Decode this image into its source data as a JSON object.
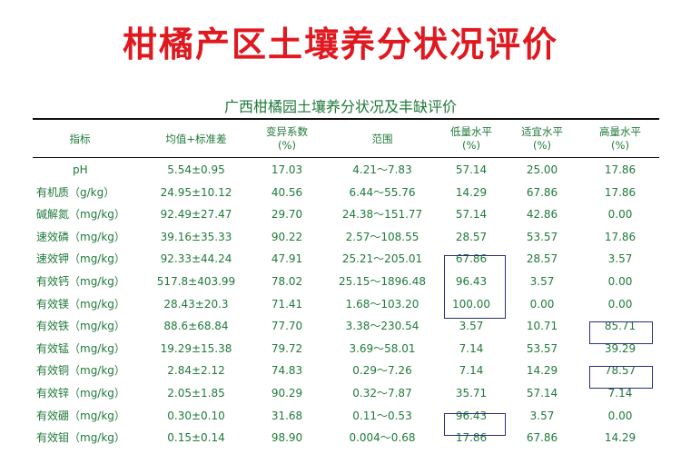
{
  "page": {
    "title": "柑橘产区土壤养分状况评价",
    "table_title": "广西柑橘园土壤养分状况及丰缺评价"
  },
  "table": {
    "headers": [
      {
        "lines": [
          "指标"
        ]
      },
      {
        "lines": [
          "均值+标准差"
        ]
      },
      {
        "lines": [
          "变异系数",
          "(%)"
        ]
      },
      {
        "lines": [
          "范围"
        ]
      },
      {
        "lines": [
          "低量水平",
          "(%)"
        ]
      },
      {
        "lines": [
          "适宜水平",
          "(%)"
        ]
      },
      {
        "lines": [
          "高量水平",
          "(%)"
        ]
      }
    ],
    "rows": [
      [
        "pH",
        "5.54±0.95",
        "17.03",
        "4.21～7.83",
        "57.14",
        "25.00",
        "17.86"
      ],
      [
        "有机质（g/kg）",
        "24.95±10.12",
        "40.56",
        "6.44～55.76",
        "14.29",
        "67.86",
        "17.86"
      ],
      [
        "碱解氮（mg/kg）",
        "92.49±27.47",
        "29.70",
        "24.38～151.77",
        "57.14",
        "42.86",
        "0.00"
      ],
      [
        "速效磷（mg/kg）",
        "39.16±35.33",
        "90.22",
        "2.57～108.55",
        "28.57",
        "53.57",
        "17.86"
      ],
      [
        "速效钾（mg/kg）",
        "92.33±44.24",
        "47.91",
        "25.21～205.01",
        "67.86",
        "28.57",
        "3.57"
      ],
      [
        "有效钙（mg/kg）",
        "517.8±403.99",
        "78.02",
        "25.15～1896.48",
        "96.43",
        "3.57",
        "0.00"
      ],
      [
        "有效镁（mg/kg）",
        "28.43±20.3",
        "71.41",
        "1.68～103.20",
        "100.00",
        "0.00",
        "0.00"
      ],
      [
        "有效铁（mg/kg）",
        "88.6±68.84",
        "77.70",
        "3.38～230.54",
        "3.57",
        "10.71",
        "85.71"
      ],
      [
        "有效锰（mg/kg）",
        "19.29±15.38",
        "79.72",
        "3.69～58.01",
        "7.14",
        "53.57",
        "39.29"
      ],
      [
        "有效铜（mg/kg）",
        "2.84±2.12",
        "74.83",
        "0.29～7.26",
        "7.14",
        "14.29",
        "78.57"
      ],
      [
        "有效锌（mg/kg）",
        "2.05±1.85",
        "90.29",
        "0.32～7.87",
        "35.71",
        "57.14",
        "7.14"
      ],
      [
        "有效硼（mg/kg）",
        "0.30±0.10",
        "31.68",
        "0.11～0.53",
        "96.43",
        "3.57",
        "0.00"
      ],
      [
        "有效钼（mg/kg）",
        "0.15±0.14",
        "98.90",
        "0.004～0.68",
        "17.86",
        "67.86",
        "14.29"
      ]
    ]
  },
  "colors": {
    "title": "#e0181f",
    "text": "#1f7a3a",
    "box": "#2a2f7a"
  }
}
